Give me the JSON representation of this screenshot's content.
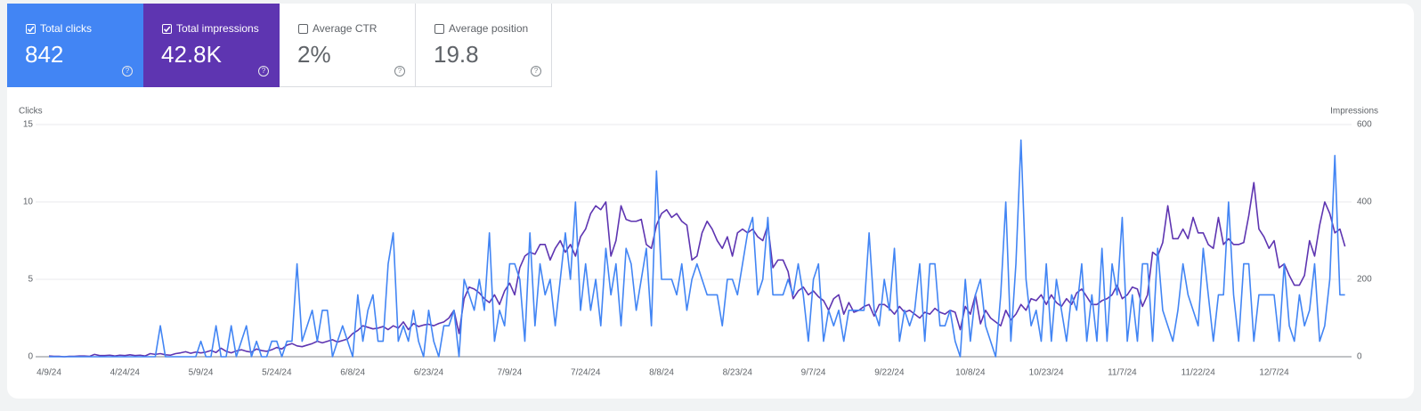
{
  "metrics": [
    {
      "label": "Total clicks",
      "value": "842",
      "checked": true,
      "color": "#4285f4"
    },
    {
      "label": "Total impressions",
      "value": "42.8K",
      "checked": true,
      "color": "#5e35b1"
    },
    {
      "label": "Average CTR",
      "value": "2%",
      "checked": false,
      "color": "#ffffff"
    },
    {
      "label": "Average position",
      "value": "19.8",
      "checked": false,
      "color": "#ffffff"
    }
  ],
  "chart_data": {
    "type": "line",
    "y_label": "Clicks",
    "y2_label": "Impressions",
    "categories": [
      "4/9/24",
      null,
      null,
      null,
      null,
      null,
      null,
      null,
      null,
      null,
      null,
      null,
      null,
      null,
      null,
      "4/24/24",
      null,
      null,
      null,
      null,
      null,
      null,
      null,
      null,
      null,
      null,
      null,
      null,
      null,
      null,
      "5/9/24",
      null,
      null,
      null,
      null,
      null,
      null,
      null,
      null,
      null,
      null,
      null,
      null,
      null,
      null,
      "5/24/24",
      null,
      null,
      null,
      null,
      null,
      null,
      null,
      null,
      null,
      null,
      null,
      null,
      null,
      null,
      "6/8/24",
      null,
      null,
      null,
      null,
      null,
      null,
      null,
      null,
      null,
      null,
      null,
      null,
      null,
      null,
      "6/23/24",
      null,
      null,
      null,
      null,
      null,
      null,
      null,
      null,
      null,
      null,
      null,
      null,
      null,
      null,
      null,
      "7/9/24",
      null,
      null,
      null,
      null,
      null,
      null,
      null,
      null,
      null,
      null,
      null,
      null,
      null,
      null,
      "7/24/24",
      null,
      null,
      null,
      null,
      null,
      null,
      null,
      null,
      null,
      null,
      null,
      null,
      null,
      null,
      "8/8/24",
      null,
      null,
      null,
      null,
      null,
      null,
      null,
      null,
      null,
      null,
      null,
      null,
      null,
      null,
      "8/23/24",
      null,
      null,
      null,
      null,
      null,
      null,
      null,
      null,
      null,
      null,
      null,
      null,
      null,
      null,
      "9/7/24",
      null,
      null,
      null,
      null,
      null,
      null,
      null,
      null,
      null,
      null,
      null,
      null,
      null,
      null,
      "9/22/24",
      null,
      null,
      null,
      null,
      null,
      null,
      null,
      null,
      null,
      null,
      null,
      null,
      null,
      null,
      null,
      "10/8/24",
      null,
      null,
      null,
      null,
      null,
      null,
      null,
      null,
      null,
      null,
      null,
      null,
      null,
      null,
      "10/23/24",
      null,
      null,
      null,
      null,
      null,
      null,
      null,
      null,
      null,
      null,
      null,
      null,
      null,
      null,
      "11/7/24",
      null,
      null,
      null,
      null,
      null,
      null,
      null,
      null,
      null,
      null,
      null,
      null,
      null,
      null,
      "11/22/24",
      null,
      null,
      null,
      null,
      null,
      null,
      null,
      null,
      null,
      null,
      null,
      null,
      null,
      null,
      "12/7/24",
      null,
      null,
      null,
      null,
      null,
      null,
      null,
      null,
      null,
      null,
      null,
      null,
      null,
      null
    ],
    "series": [
      {
        "color": "#4285f4",
        "values": [
          0,
          0,
          0,
          0,
          0,
          0,
          0,
          0,
          0,
          0,
          0,
          0,
          0,
          0,
          0,
          0,
          0,
          0,
          0,
          0,
          0,
          0,
          2,
          0,
          0,
          0,
          0,
          0,
          0,
          0,
          1,
          0,
          0,
          2,
          0,
          0,
          2,
          0,
          1,
          2,
          0,
          1,
          0,
          0,
          1,
          1,
          0,
          1,
          1,
          6,
          1,
          2,
          3,
          1,
          3,
          3,
          0,
          1,
          2,
          1,
          0,
          4,
          1,
          3,
          4,
          1,
          1,
          6,
          8,
          1,
          2,
          1,
          3,
          1,
          0,
          3,
          1,
          0,
          2,
          2,
          3,
          0,
          5,
          4,
          3,
          5,
          3,
          8,
          1,
          3,
          2,
          6,
          6,
          5,
          1,
          8,
          2,
          6,
          4,
          5,
          2,
          5,
          8,
          5,
          10,
          3,
          6,
          3,
          5,
          2,
          7,
          4,
          6,
          2,
          7,
          6,
          3,
          5,
          7,
          2,
          12,
          5,
          5,
          5,
          4,
          6,
          3,
          5,
          6,
          5,
          4,
          4,
          4,
          2,
          5,
          5,
          4,
          6,
          8,
          9,
          4,
          5,
          9,
          4,
          4,
          4,
          5,
          4,
          6,
          4,
          1,
          5,
          6,
          1,
          3,
          2,
          3,
          1,
          3,
          3,
          3,
          3,
          8,
          3,
          2,
          5,
          3,
          7,
          1,
          3,
          2,
          3,
          6,
          1,
          6,
          6,
          2,
          2,
          3,
          1,
          0,
          5,
          1,
          4,
          5,
          2,
          1,
          0,
          4,
          10,
          1,
          6,
          14,
          5,
          2,
          3,
          1,
          6,
          1,
          5,
          3,
          1,
          4,
          3,
          6,
          1,
          4,
          1,
          7,
          1,
          6,
          4,
          9,
          1,
          4,
          1,
          6,
          6,
          1,
          7,
          3,
          2,
          1,
          3,
          6,
          4,
          3,
          2,
          7,
          4,
          1,
          4,
          4,
          10,
          4,
          1,
          6,
          6,
          1,
          4,
          4,
          4,
          4,
          1,
          6,
          2,
          1,
          4,
          2,
          3,
          6,
          1,
          2,
          5,
          13,
          4,
          4
        ]
      },
      {
        "color": "#5e35b1",
        "axis": "y2",
        "values": [
          2,
          1,
          1,
          0,
          1,
          1,
          2,
          2,
          1,
          6,
          3,
          3,
          4,
          2,
          4,
          3,
          5,
          3,
          4,
          2,
          8,
          6,
          8,
          5,
          4,
          8,
          10,
          13,
          9,
          12,
          10,
          12,
          16,
          11,
          22,
          14,
          10,
          15,
          18,
          14,
          12,
          20,
          16,
          14,
          18,
          24,
          20,
          30,
          34,
          28,
          26,
          30,
          34,
          40,
          36,
          40,
          44,
          38,
          42,
          46,
          60,
          68,
          80,
          76,
          72,
          74,
          78,
          70,
          80,
          74,
          90,
          70,
          86,
          78,
          82,
          84,
          80,
          86,
          90,
          100,
          120,
          60,
          150,
          180,
          175,
          165,
          150,
          140,
          160,
          135,
          170,
          190,
          160,
          230,
          260,
          270,
          265,
          290,
          290,
          250,
          280,
          300,
          270,
          290,
          260,
          310,
          330,
          370,
          390,
          380,
          400,
          260,
          300,
          390,
          355,
          350,
          350,
          355,
          290,
          280,
          340,
          370,
          380,
          360,
          370,
          350,
          340,
          250,
          260,
          320,
          350,
          330,
          300,
          280,
          310,
          260,
          320,
          330,
          320,
          330,
          310,
          300,
          340,
          230,
          250,
          250,
          220,
          150,
          170,
          180,
          160,
          170,
          155,
          145,
          120,
          150,
          160,
          110,
          140,
          115,
          120,
          130,
          135,
          105,
          135,
          135,
          125,
          110,
          130,
          115,
          120,
          110,
          100,
          115,
          110,
          125,
          115,
          110,
          120,
          115,
          70,
          130,
          110,
          160,
          85,
          120,
          100,
          90,
          80,
          120,
          95,
          110,
          135,
          120,
          150,
          145,
          160,
          135,
          160,
          140,
          130,
          150,
          135,
          165,
          175,
          155,
          135,
          135,
          145,
          150,
          160,
          185,
          150,
          160,
          180,
          175,
          130,
          160,
          270,
          260,
          295,
          390,
          305,
          305,
          330,
          305,
          360,
          320,
          320,
          290,
          280,
          360,
          290,
          305,
          290,
          290,
          295,
          365,
          450,
          330,
          310,
          280,
          300,
          230,
          240,
          210,
          185,
          185,
          210,
          300,
          260,
          340,
          400,
          370,
          320,
          330,
          285
        ]
      }
    ],
    "ylim": [
      0,
      15
    ],
    "yticks": [
      0,
      5,
      10,
      15
    ],
    "y2lim": [
      0,
      600
    ],
    "y2ticks": [
      0,
      200,
      400,
      600
    ],
    "grid": true
  }
}
